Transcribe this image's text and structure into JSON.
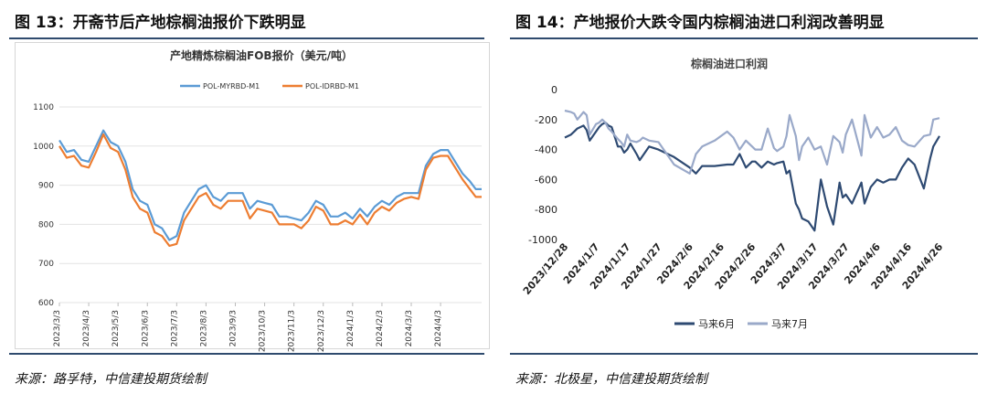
{
  "left_panel": {
    "figure_title": "图 13：开斋节后产地棕榈油报价下跌明显",
    "source": "来源：路孚特，中信建投期货绘制"
  },
  "right_panel": {
    "figure_title": "图 14：产地报价大跌令国内棕榈油进口利润改善明显",
    "source": "来源：北极星，中信建投期货绘制"
  },
  "colors": {
    "myrbd": "#5b9bd5",
    "idrbd": "#ed7d31",
    "jun": "#2e4a72",
    "jul": "#9aa9c9",
    "rule": "#2f4b6e"
  },
  "chart_data": [
    {
      "type": "line",
      "title": "产地精炼棕榈油FOB报价（美元/吨）",
      "xlabel": "",
      "ylabel": "",
      "ylim": [
        600,
        1100
      ],
      "y_ticks": [
        "600",
        "700",
        "800",
        "900",
        "1000",
        "1100"
      ],
      "x_ticks": [
        "2023/3/3",
        "2023/4/3",
        "2023/5/3",
        "2023/6/3",
        "2023/7/3",
        "2023/8/3",
        "2023/9/3",
        "2023/10/3",
        "2023/11/3",
        "2023/12/3",
        "2024/1/3",
        "2024/2/3",
        "2024/3/3",
        "2024/4/3"
      ],
      "x": [
        0,
        0.25,
        0.5,
        0.75,
        1.0,
        1.25,
        1.5,
        1.75,
        2.0,
        2.25,
        2.5,
        2.75,
        3.0,
        3.25,
        3.5,
        3.75,
        4.0,
        4.25,
        4.5,
        4.75,
        5.0,
        5.25,
        5.5,
        5.75,
        6.0,
        6.25,
        6.5,
        6.75,
        7.0,
        7.25,
        7.5,
        7.75,
        8.0,
        8.25,
        8.5,
        8.75,
        9.0,
        9.25,
        9.5,
        9.75,
        10.0,
        10.25,
        10.5,
        10.75,
        11.0,
        11.25,
        11.5,
        11.75,
        12.0,
        12.25,
        12.5,
        12.75,
        13.0,
        13.25,
        13.5,
        13.75,
        14.0,
        14.2,
        14.4
      ],
      "series": [
        {
          "name": "POL-MYRBD-M1",
          "color_key": "myrbd",
          "values": [
            1015,
            985,
            990,
            965,
            960,
            1000,
            1040,
            1010,
            1000,
            960,
            890,
            860,
            850,
            800,
            790,
            760,
            770,
            830,
            860,
            890,
            900,
            870,
            860,
            880,
            880,
            880,
            840,
            860,
            855,
            850,
            820,
            820,
            815,
            810,
            830,
            860,
            850,
            820,
            820,
            830,
            815,
            840,
            820,
            845,
            860,
            850,
            870,
            880,
            880,
            880,
            950,
            980,
            990,
            990,
            960,
            930,
            910,
            890,
            890
          ]
        },
        {
          "name": "POL-IDRBD-M1",
          "color_key": "idrbd",
          "values": [
            1000,
            970,
            975,
            950,
            945,
            985,
            1030,
            995,
            985,
            940,
            870,
            840,
            830,
            780,
            770,
            745,
            750,
            810,
            840,
            870,
            880,
            850,
            840,
            860,
            860,
            860,
            815,
            840,
            835,
            830,
            800,
            800,
            800,
            790,
            810,
            845,
            835,
            800,
            800,
            810,
            800,
            825,
            800,
            830,
            845,
            835,
            855,
            865,
            870,
            865,
            940,
            970,
            975,
            975,
            945,
            915,
            890,
            870,
            870
          ]
        }
      ]
    },
    {
      "type": "line",
      "title": "棕榈油进口利润",
      "xlabel": "",
      "ylabel": "",
      "ylim": [
        -1000,
        0
      ],
      "y_ticks": [
        "0",
        "-200",
        "-400",
        "-600",
        "-800",
        "-1000"
      ],
      "x_ticks": [
        "2023/12/28",
        "2024/1/7",
        "2024/1/17",
        "2024/1/27",
        "2024/2/6",
        "2024/2/16",
        "2024/2/26",
        "2024/3/7",
        "2024/3/17",
        "2024/3/27",
        "2024/4/6",
        "2024/4/16",
        "2024/4/26"
      ],
      "x": [
        0,
        2,
        3,
        4,
        6,
        7,
        8,
        10,
        11,
        12,
        13,
        14,
        15,
        17,
        18,
        19,
        20,
        21,
        23,
        24,
        25,
        27,
        30,
        35,
        40,
        42,
        44,
        48,
        52,
        54,
        56,
        58,
        60,
        61,
        63,
        65,
        67,
        68,
        70,
        71,
        72,
        74,
        75,
        76,
        78,
        80,
        82,
        84,
        86,
        88,
        89,
        90,
        92,
        95,
        96,
        98,
        100,
        102,
        104,
        106,
        108,
        110,
        112,
        115,
        117,
        118,
        120
      ],
      "series": [
        {
          "name": "马来6月",
          "color_key": "jun",
          "values": [
            -320,
            -300,
            -280,
            -260,
            -240,
            -270,
            -340,
            -280,
            -250,
            -230,
            -220,
            -240,
            -250,
            -380,
            -380,
            -420,
            -400,
            -360,
            -430,
            -470,
            -440,
            -380,
            -400,
            -450,
            -520,
            -560,
            -510,
            -510,
            -500,
            -500,
            -430,
            -520,
            -480,
            -480,
            -520,
            -480,
            -500,
            -490,
            -480,
            -560,
            -540,
            -760,
            -800,
            -860,
            -880,
            -940,
            -600,
            -780,
            -900,
            -620,
            -720,
            -700,
            -760,
            -620,
            -760,
            -650,
            -600,
            -620,
            -600,
            -600,
            -520,
            -460,
            -500,
            -660,
            -460,
            -380,
            -310
          ]
        },
        {
          "name": "马来7月",
          "color_key": "jul",
          "values": [
            -140,
            -150,
            -160,
            -200,
            -150,
            -170,
            -300,
            -230,
            -220,
            -200,
            -220,
            -260,
            -280,
            -330,
            -350,
            -380,
            -300,
            -340,
            -350,
            -340,
            -320,
            -340,
            -350,
            -500,
            -560,
            -430,
            -380,
            -340,
            -280,
            -320,
            -400,
            -340,
            -380,
            -400,
            -400,
            -260,
            -390,
            -410,
            -380,
            -310,
            -170,
            -310,
            -470,
            -380,
            -320,
            -400,
            -380,
            -500,
            -310,
            -350,
            -420,
            -300,
            -200,
            -440,
            -170,
            -320,
            -250,
            -320,
            -300,
            -250,
            -340,
            -370,
            -380,
            -310,
            -300,
            -200,
            -190
          ]
        }
      ]
    }
  ]
}
